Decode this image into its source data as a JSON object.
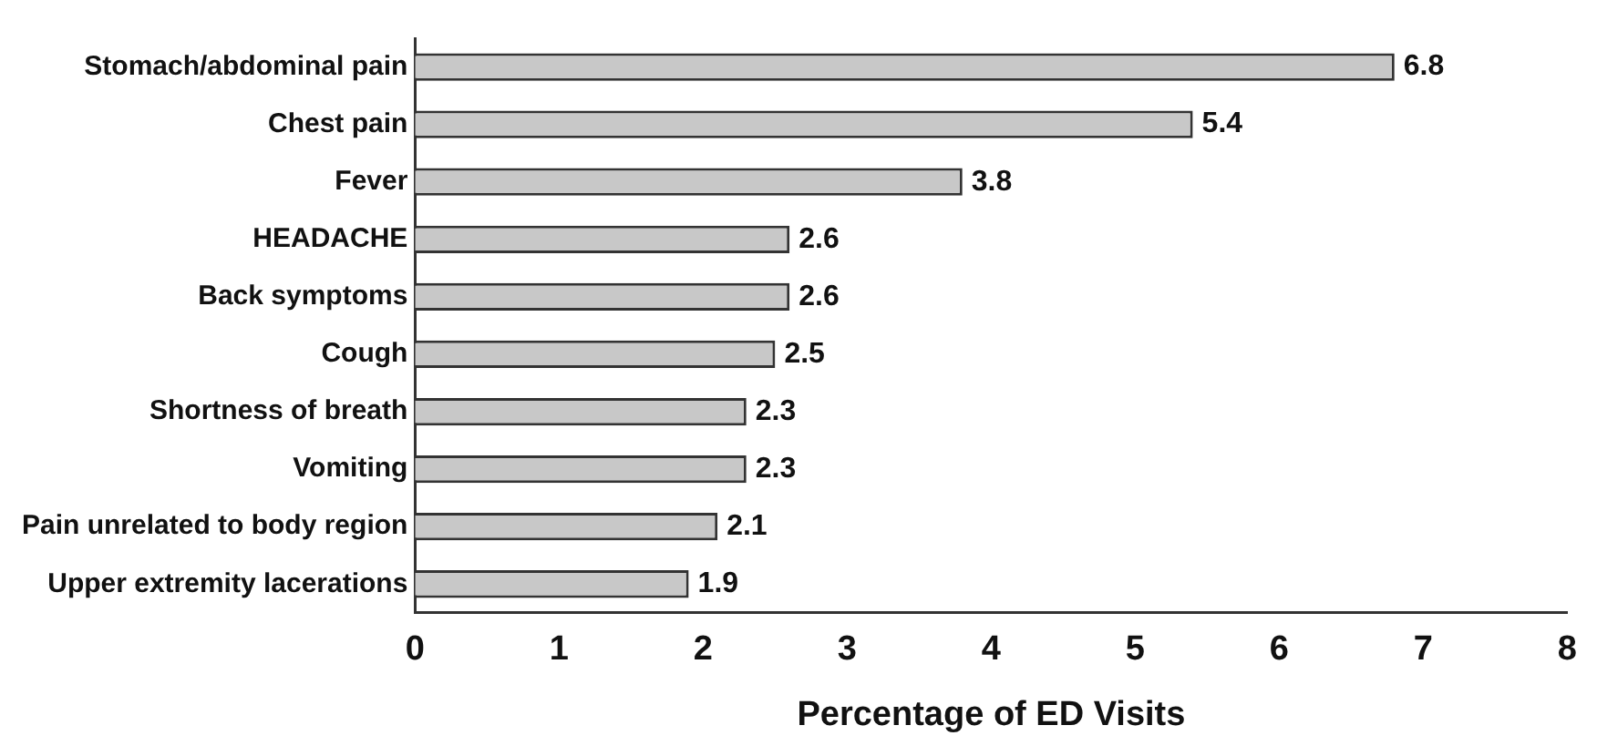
{
  "chart_data": {
    "type": "bar",
    "orientation": "horizontal",
    "xlabel": "Percentage of ED Visits",
    "categories": [
      "Stomach/abdominal pain",
      "Chest pain",
      "Fever",
      "HEADACHE",
      "Back symptoms",
      "Cough",
      "Shortness of breath",
      "Vomiting",
      "Pain unrelated to body region",
      "Upper extremity lacerations"
    ],
    "values": [
      6.8,
      5.4,
      3.8,
      2.6,
      2.6,
      2.5,
      2.3,
      2.3,
      2.1,
      1.9
    ],
    "color": "#c8c8c8",
    "xlim": [
      0,
      8
    ],
    "xticks": [
      0,
      1,
      2,
      3,
      4,
      5,
      6,
      7,
      8
    ],
    "grid": false,
    "data_labels": true
  }
}
